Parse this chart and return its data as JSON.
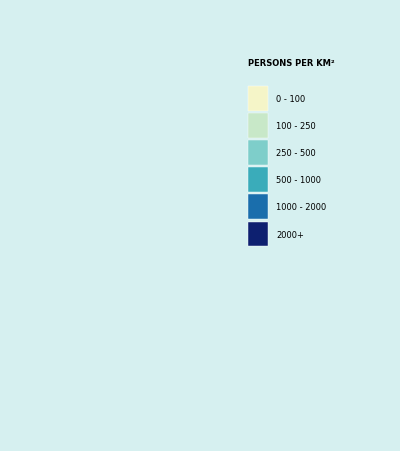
{
  "title": "PERSONS PER KM²",
  "legend_labels": [
    "0 - 100",
    "100 - 250",
    "250 - 500",
    "500 - 1000",
    "1000 - 2000",
    "2000+"
  ],
  "legend_colors": [
    "#f5f5c8",
    "#c8e8c8",
    "#7ececa",
    "#3aacba",
    "#1a6eac",
    "#0d2070"
  ],
  "background_color": "#d6f0f0",
  "map_background": "#d6f0f0",
  "figsize": [
    4.0,
    4.52
  ],
  "dpi": 100
}
